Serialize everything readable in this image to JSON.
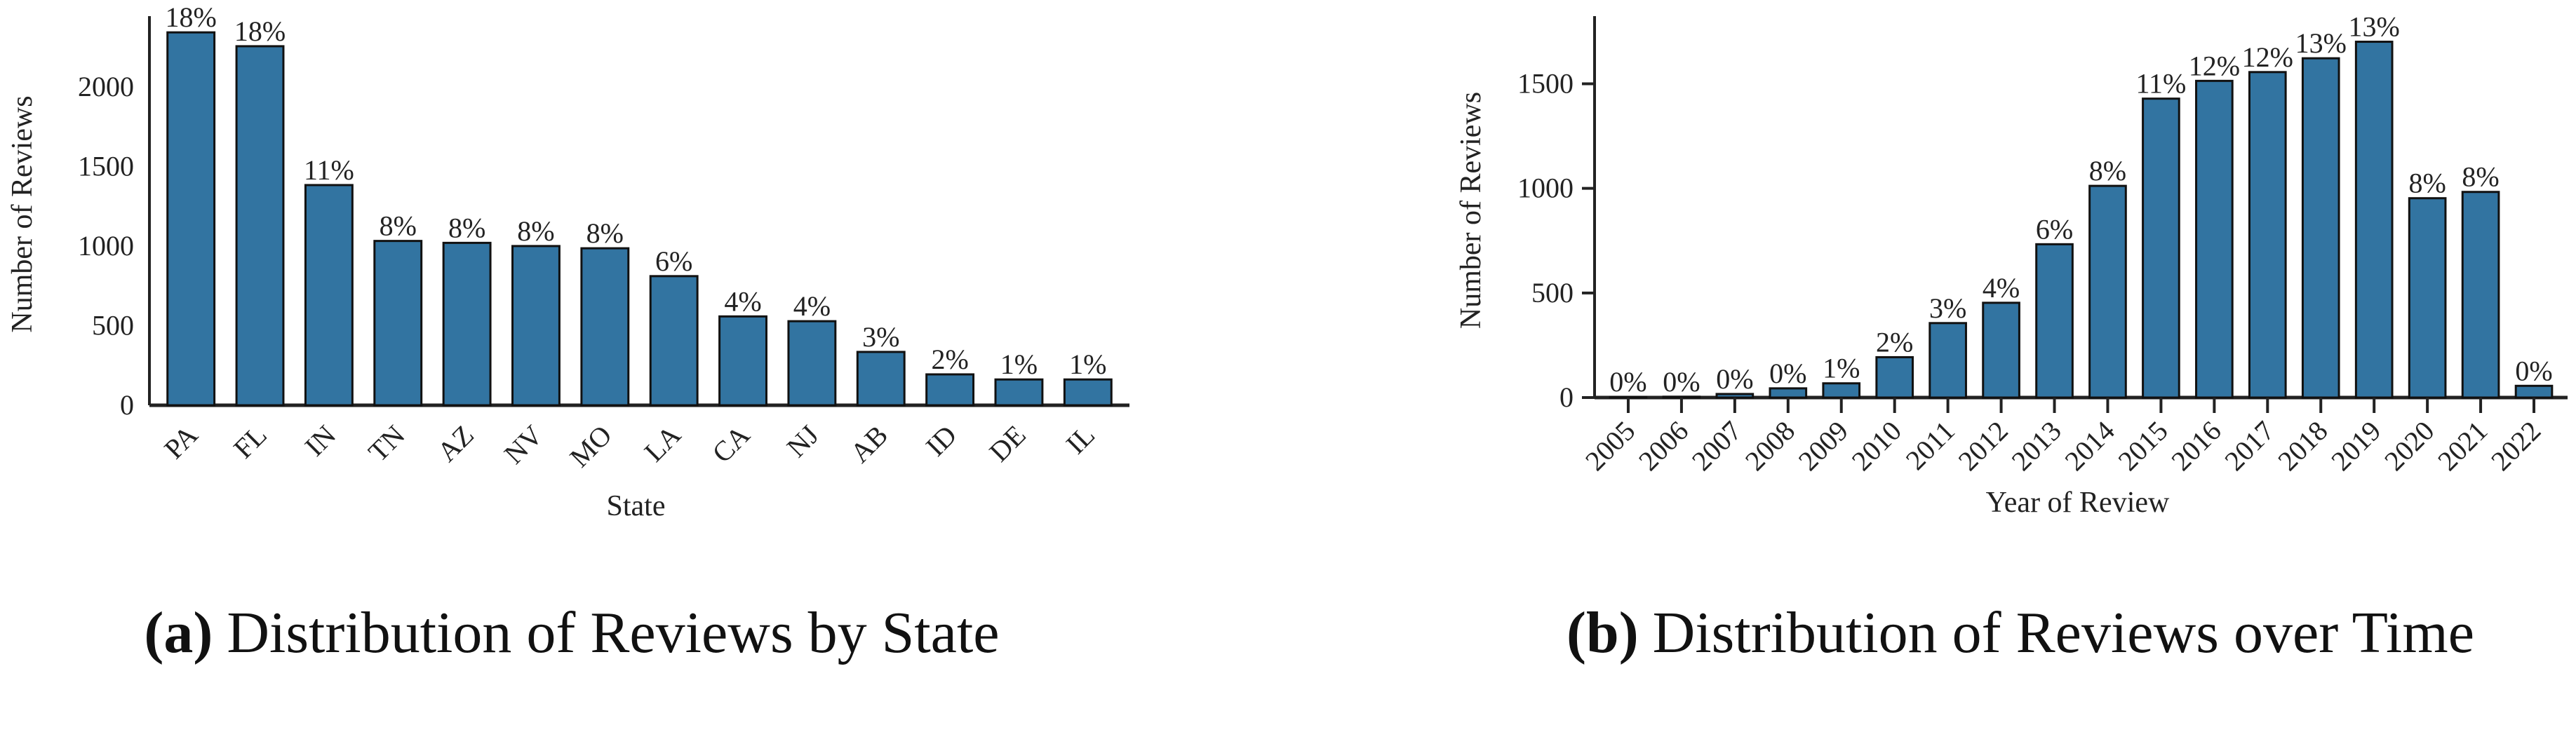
{
  "chart_data": [
    {
      "type": "bar",
      "title": "",
      "caption_tag": "(a)",
      "caption": "Distribution of Reviews by State",
      "xlabel": "State",
      "ylabel": "Number of Reviews",
      "ylim": [
        0,
        2400
      ],
      "yticks": [
        0,
        500,
        1000,
        1500,
        2000
      ],
      "categories": [
        "PA",
        "FL",
        "IN",
        "TN",
        "AZ",
        "NV",
        "MO",
        "LA",
        "CA",
        "NJ",
        "AB",
        "ID",
        "DE",
        "IL"
      ],
      "values": [
        2342,
        2255,
        1383,
        1032,
        1020,
        1000,
        986,
        811,
        558,
        528,
        335,
        194,
        162,
        162
      ],
      "labels": [
        "18%",
        "18%",
        "11%",
        "8%",
        "8%",
        "8%",
        "8%",
        "6%",
        "4%",
        "4%",
        "3%",
        "2%",
        "1%",
        "1%"
      ],
      "color": "#3274a1",
      "grid": false
    },
    {
      "type": "bar",
      "title": "",
      "caption_tag": "(b)",
      "caption": "Distribution of Reviews over Time",
      "xlabel": "Year of Review",
      "ylabel": "Number of Reviews",
      "ylim": [
        0,
        1790
      ],
      "yticks": [
        0,
        500,
        1000,
        1500
      ],
      "categories": [
        "2005",
        "2006",
        "2007",
        "2008",
        "2009",
        "2010",
        "2011",
        "2012",
        "2013",
        "2014",
        "2015",
        "2016",
        "2017",
        "2018",
        "2019",
        "2020",
        "2021",
        "2022"
      ],
      "values": [
        3,
        4,
        17,
        44,
        68,
        193,
        356,
        453,
        733,
        1012,
        1429,
        1514,
        1556,
        1622,
        1701,
        953,
        983,
        56
      ],
      "labels": [
        "0%",
        "0%",
        "0%",
        "0%",
        "1%",
        "2%",
        "3%",
        "4%",
        "6%",
        "8%",
        "11%",
        "12%",
        "12%",
        "13%",
        "13%",
        "8%",
        "8%",
        "0%"
      ],
      "color": "#3274a1",
      "grid": false
    }
  ]
}
